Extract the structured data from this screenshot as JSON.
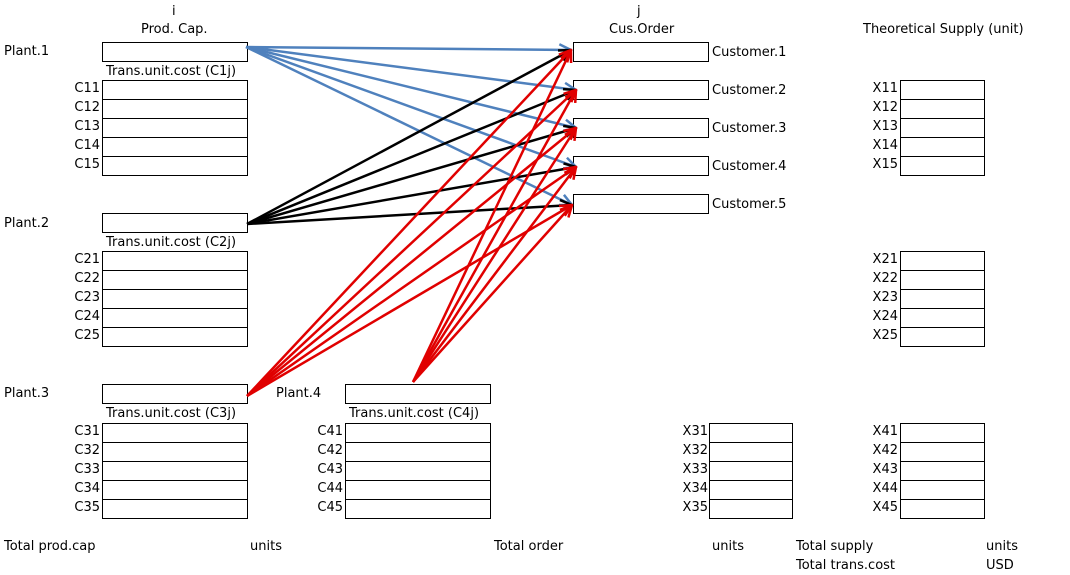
{
  "header": {
    "i_label": "i",
    "prod_cap_label": "Prod. Cap.",
    "j_label": "j",
    "cus_order_label": "Cus.Order",
    "theoretical_supply_label": "Theoretical Supply (unit)"
  },
  "plants": {
    "p1": {
      "name": "Plant.1",
      "cost_title": "Trans.unit.cost (C1j)",
      "costs": [
        "C11",
        "C12",
        "C13",
        "C14",
        "C15"
      ]
    },
    "p2": {
      "name": "Plant.2",
      "cost_title": "Trans.unit.cost (C2j)",
      "costs": [
        "C21",
        "C22",
        "C23",
        "C24",
        "C25"
      ]
    },
    "p3": {
      "name": "Plant.3",
      "cost_title": "Trans.unit.cost (C3j)",
      "costs": [
        "C31",
        "C32",
        "C33",
        "C34",
        "C35"
      ]
    },
    "p4": {
      "name": "Plant.4",
      "cost_title": "Trans.unit.cost (C4j)",
      "costs": [
        "C41",
        "C42",
        "C43",
        "C44",
        "C45"
      ]
    }
  },
  "customers": [
    "Customer.1",
    "Customer.2",
    "Customer.3",
    "Customer.4",
    "Customer.5"
  ],
  "supply": {
    "x1": [
      "X11",
      "X12",
      "X13",
      "X14",
      "X15"
    ],
    "x2": [
      "X21",
      "X22",
      "X23",
      "X24",
      "X25"
    ],
    "x3": [
      "X31",
      "X32",
      "X33",
      "X34",
      "X35"
    ],
    "x4": [
      "X41",
      "X42",
      "X43",
      "X44",
      "X45"
    ]
  },
  "totals": {
    "total_prod_cap": "Total prod.cap",
    "units_1": "units",
    "total_order": "Total order",
    "units_2": "units",
    "total_supply": "Total supply",
    "units_3": "units",
    "total_trans_cost": "Total trans.cost",
    "usd": "USD"
  },
  "colors": {
    "plant1_arrow": "#4f81bd",
    "plant2_arrow": "#000000",
    "plant34_arrow": "#e00000"
  }
}
